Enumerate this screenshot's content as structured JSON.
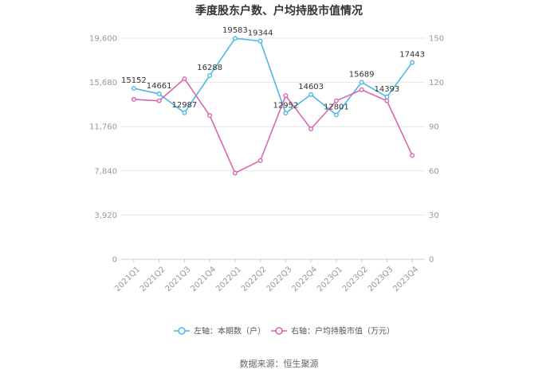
{
  "chart_data": {
    "type": "line",
    "title": "季度股东户数、户均持股市值情况",
    "categories": [
      "2021Q1",
      "2021Q2",
      "2021Q3",
      "2021Q4",
      "2022Q1",
      "2022Q2",
      "2022Q3",
      "2022Q4",
      "2023Q1",
      "2023Q2",
      "2023Q3",
      "2023Q4"
    ],
    "left_axis": {
      "ticks": [
        "0",
        "3,920",
        "7,840",
        "11,760",
        "15,680",
        "19,600"
      ],
      "ylim": [
        0,
        19600
      ]
    },
    "right_axis": {
      "ticks": [
        "0",
        "30",
        "60",
        "90",
        "120",
        "150"
      ],
      "ylim": [
        0,
        150
      ]
    },
    "series": [
      {
        "name": "左轴：本期数（户）",
        "axis": "left",
        "color": "#4db8e8",
        "values": [
          15152,
          14661,
          12987,
          16288,
          19583,
          19344,
          12952,
          14603,
          12801,
          15689,
          14393,
          17443
        ],
        "labels": [
          "15152",
          "14661",
          "12987",
          "16288",
          "19583",
          "19344",
          "12952",
          "14603",
          "12801",
          "15689",
          "14393",
          "17443"
        ]
      },
      {
        "name": "右轴：户均持股市值（万元）",
        "axis": "right",
        "color": "#d966b0",
        "values": [
          108.5,
          107.5,
          122.5,
          97.5,
          58.5,
          67,
          111,
          88.5,
          107.5,
          115,
          107.5,
          70.5
        ]
      }
    ],
    "grid": true,
    "legend": "bottom"
  },
  "source": "数据来源：恒生聚源"
}
